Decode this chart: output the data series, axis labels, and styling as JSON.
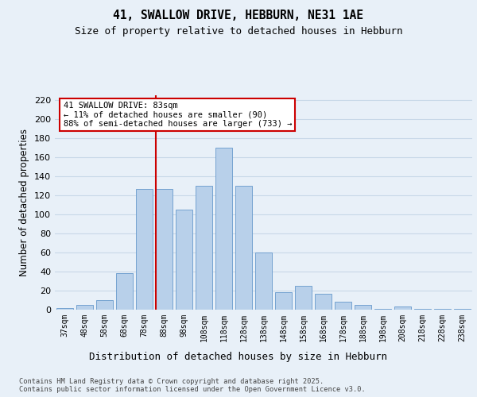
{
  "title": "41, SWALLOW DRIVE, HEBBURN, NE31 1AE",
  "subtitle": "Size of property relative to detached houses in Hebburn",
  "xlabel": "Distribution of detached houses by size in Hebburn",
  "ylabel": "Number of detached properties",
  "categories": [
    "37sqm",
    "48sqm",
    "58sqm",
    "68sqm",
    "78sqm",
    "88sqm",
    "98sqm",
    "108sqm",
    "118sqm",
    "128sqm",
    "138sqm",
    "148sqm",
    "158sqm",
    "168sqm",
    "178sqm",
    "188sqm",
    "198sqm",
    "208sqm",
    "218sqm",
    "228sqm",
    "238sqm"
  ],
  "values": [
    2,
    5,
    10,
    38,
    127,
    127,
    105,
    130,
    170,
    130,
    60,
    18,
    25,
    17,
    8,
    5,
    1,
    3,
    1,
    1,
    1
  ],
  "bar_color": "#b8d0ea",
  "bar_edge_color": "#6699cc",
  "background_color": "#e8f0f8",
  "grid_color": "#c8d8e8",
  "annotation_line1": "41 SWALLOW DRIVE: 83sqm",
  "annotation_line2": "← 11% of detached houses are smaller (90)",
  "annotation_line3": "88% of semi-detached houses are larger (733) →",
  "annotation_box_color": "#ffffff",
  "annotation_box_edge": "#cc0000",
  "red_line_color": "#cc0000",
  "ylim": [
    0,
    225
  ],
  "yticks": [
    0,
    20,
    40,
    60,
    80,
    100,
    120,
    140,
    160,
    180,
    200,
    220
  ],
  "footer_line1": "Contains HM Land Registry data © Crown copyright and database right 2025.",
  "footer_line2": "Contains public sector information licensed under the Open Government Licence v3.0."
}
